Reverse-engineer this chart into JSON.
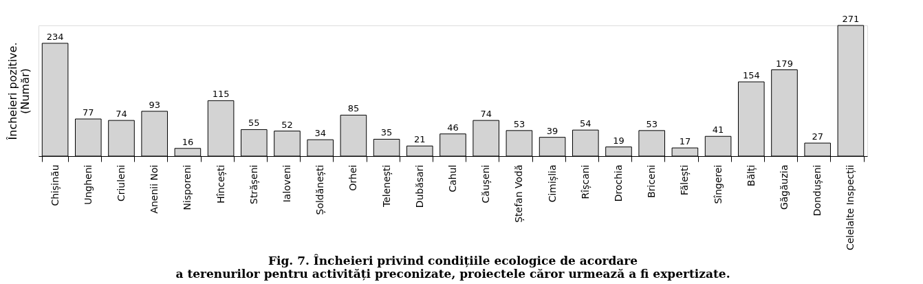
{
  "chart_data": {
    "type": "bar",
    "title": "Fig. 7. Încheieri privind condițiile ecologice de acordare\na terenurilor pentru activități preconizate, proiectele căror urmează a fi expertizate.",
    "ylabel": "Încheieri pozitive.\n(Număr)",
    "categories": [
      "Chișinău",
      "Ungheni",
      "Criuleni",
      "Anenii Noi",
      "Nisporeni",
      "Hîncești",
      "Strășeni",
      "Ialoveni",
      "Șoldănești",
      "Orhei",
      "Telenești",
      "Dubăsari",
      "Cahul",
      "Căușeni",
      "Ștefan Vodă",
      "Cimișlia",
      "Rîșcani",
      "Drochia",
      "Briceni",
      "Fălești",
      "Sîngerei",
      "Bălți",
      "Găgăuzia",
      "Dondușeni",
      "Celelalte Inspecții"
    ],
    "values": [
      234,
      77,
      74,
      93,
      16,
      115,
      55,
      52,
      34,
      85,
      35,
      21,
      46,
      74,
      53,
      39,
      54,
      19,
      53,
      17,
      41,
      154,
      179,
      27,
      271
    ],
    "color": "#d3d3d3",
    "data_labels": true,
    "grid": false
  }
}
